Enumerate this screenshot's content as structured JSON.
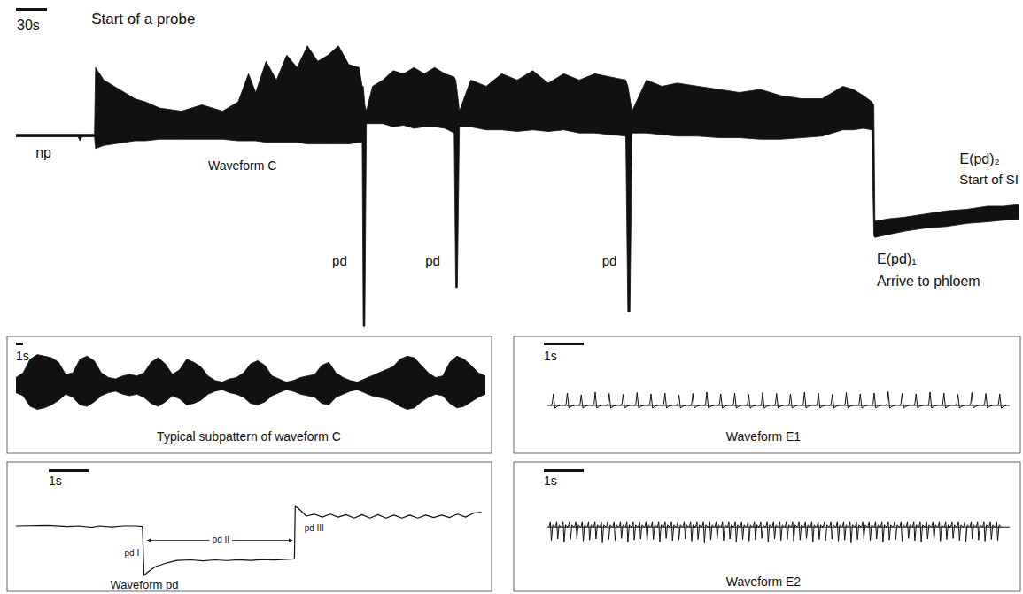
{
  "chart_data": [
    {
      "type": "band",
      "xlim": [
        0,
        970
      ],
      "ylim": [
        0,
        100
      ],
      "tick_labels": false,
      "scale_bar": {
        "value": 30,
        "label": "30s"
      },
      "x": [
        0,
        60,
        62,
        64,
        76,
        77,
        85,
        95,
        105,
        115,
        125,
        139,
        160,
        180,
        200,
        215,
        225,
        232,
        242,
        252,
        262,
        272,
        282,
        292,
        302,
        312,
        322,
        332,
        335,
        336,
        337.5,
        339,
        345,
        355,
        365,
        375,
        385,
        395,
        405,
        415,
        424,
        425.5,
        427,
        429,
        440,
        455,
        470,
        485,
        500,
        515,
        530,
        545,
        560,
        575,
        590,
        592,
        594,
        596,
        610,
        625,
        640,
        660,
        680,
        700,
        720,
        740,
        760,
        780,
        790,
        800,
        810,
        820,
        828,
        830,
        831,
        845,
        860,
        880,
        900,
        920,
        940,
        955,
        970
      ],
      "series": [
        {
          "color": "#111111",
          "values": [
            62.6,
            62.6,
            62.6,
            62.6,
            62.6,
            84,
            80,
            78,
            76,
            74,
            73,
            71,
            70,
            72,
            70,
            73,
            82,
            76,
            86,
            80,
            88,
            84,
            91,
            86,
            88,
            91,
            85,
            84,
            78,
            78,
            72,
            70,
            78,
            80,
            83,
            82,
            84,
            82,
            84,
            82,
            81,
            80,
            76,
            70,
            80,
            78,
            82,
            80,
            83,
            79,
            82,
            80,
            82,
            81,
            80,
            78,
            74,
            70,
            80,
            78,
            79,
            78,
            77,
            76,
            77,
            75,
            74,
            74,
            76,
            78,
            77,
            75,
            73,
            72,
            34.7,
            35.5,
            36,
            37,
            38,
            38.5,
            39.5,
            39.5,
            40
          ],
          "lower": [
            61.8,
            61.8,
            60.5,
            61.8,
            61.8,
            58,
            59,
            59.5,
            60,
            60.5,
            60.5,
            61,
            61,
            61,
            61,
            60.5,
            60.5,
            60.5,
            60,
            60,
            60,
            60,
            59.5,
            59.5,
            59.5,
            59.5,
            59.5,
            60,
            60,
            1.1,
            1.1,
            66,
            66,
            66,
            65,
            65.5,
            64.5,
            65,
            65,
            64.5,
            63,
            13.4,
            13.4,
            65,
            65,
            64,
            64,
            63.5,
            64,
            63.5,
            64,
            63,
            63,
            62.5,
            62,
            5.7,
            5.7,
            63,
            63,
            62.5,
            62,
            62,
            61.5,
            61.5,
            61,
            61,
            61.5,
            62,
            63,
            64,
            64,
            64.5,
            64,
            30,
            29.5,
            30.5,
            31.5,
            32.5,
            33,
            34,
            34.5,
            35,
            35.3
          ]
        }
      ],
      "annotations": [
        {
          "text": "Start of a probe",
          "x": 73,
          "y": 98
        },
        {
          "text": "np",
          "x": 19,
          "y": 55
        },
        {
          "text": "Waveform C",
          "x": 186,
          "y": 51
        },
        {
          "text": "pd",
          "x": 306,
          "y": 20.5
        },
        {
          "text": "pd",
          "x": 396,
          "y": 20.5
        },
        {
          "text": "pd",
          "x": 567,
          "y": 20.5
        },
        {
          "text": "E(pd)₁",
          "x": 833,
          "y": 21
        },
        {
          "text": "Arrive to phloem",
          "x": 833,
          "y": 14
        },
        {
          "text": "E(pd)₂",
          "x": 913,
          "y": 53
        },
        {
          "text": "Start of SI",
          "x": 913,
          "y": 46.6
        }
      ]
    },
    {
      "type": "band",
      "title": "Typical subpattern of waveform C",
      "xlim": [
        0,
        66
      ],
      "ylim": [
        0,
        100
      ],
      "tick_labels": false,
      "scale_bar": {
        "value": 1,
        "label": "1s"
      },
      "x": [
        0,
        1,
        2,
        3,
        4,
        5,
        6,
        7,
        8,
        9,
        10,
        11,
        12,
        13,
        14,
        15,
        16,
        17,
        18,
        19,
        20,
        21,
        22,
        23,
        24,
        25,
        26,
        27,
        28,
        29,
        30,
        31,
        32,
        33,
        34,
        35,
        36,
        37,
        38,
        39,
        40,
        41,
        42,
        43,
        44,
        45,
        46,
        47,
        48,
        49,
        50,
        51,
        52,
        53,
        54,
        55,
        56,
        57,
        58,
        59,
        60,
        61,
        62,
        63,
        64,
        65,
        66
      ],
      "series": [
        {
          "color": "#111111",
          "values": [
            60,
            66,
            84,
            90,
            88,
            86,
            80,
            64,
            66,
            84,
            88,
            82,
            66,
            60,
            58,
            62,
            64,
            62,
            66,
            80,
            86,
            78,
            64,
            70,
            84,
            80,
            74,
            62,
            56,
            54,
            58,
            60,
            66,
            78,
            82,
            76,
            62,
            58,
            54,
            56,
            60,
            62,
            64,
            76,
            80,
            66,
            60,
            56,
            54,
            58,
            62,
            66,
            70,
            74,
            84,
            88,
            86,
            76,
            66,
            60,
            62,
            80,
            88,
            84,
            76,
            66,
            62
          ],
          "lower": [
            40,
            36,
            22,
            18,
            20,
            24,
            30,
            38,
            34,
            24,
            22,
            28,
            36,
            40,
            42,
            38,
            36,
            38,
            34,
            26,
            22,
            28,
            36,
            32,
            24,
            26,
            30,
            38,
            42,
            44,
            40,
            38,
            34,
            26,
            24,
            28,
            36,
            40,
            44,
            42,
            38,
            36,
            34,
            26,
            24,
            34,
            38,
            42,
            44,
            40,
            36,
            34,
            32,
            28,
            22,
            18,
            20,
            28,
            34,
            38,
            36,
            26,
            20,
            22,
            28,
            34,
            38
          ]
        }
      ]
    },
    {
      "type": "spikes",
      "title": "Waveform E1",
      "xlim": [
        0,
        11.6
      ],
      "ylim": [
        0,
        100
      ],
      "tick_labels": false,
      "scale_bar": {
        "value": 1,
        "label": "1s"
      },
      "x": [
        0.15,
        0.5,
        0.85,
        1.2,
        1.55,
        1.9,
        2.25,
        2.6,
        2.95,
        3.3,
        3.65,
        4.0,
        4.35,
        4.7,
        5.05,
        5.4,
        5.75,
        6.1,
        6.45,
        6.8,
        7.15,
        7.5,
        7.85,
        8.2,
        8.55,
        8.9,
        9.25,
        9.6,
        9.95,
        10.3,
        10.65,
        11.0,
        11.35
      ],
      "series": [
        {
          "color": "#111111",
          "baseline": 44,
          "values": [
            70,
            72,
            68,
            74,
            71,
            69,
            73,
            70,
            72,
            68,
            71,
            74,
            70,
            72,
            69,
            73,
            71,
            70,
            74,
            72,
            69,
            73,
            70,
            72,
            75,
            71,
            70,
            74,
            72,
            69,
            73,
            71,
            70
          ]
        }
      ]
    },
    {
      "type": "line",
      "title": "Waveform pd",
      "xlim": [
        0,
        11.8
      ],
      "ylim": [
        0,
        100
      ],
      "tick_labels": false,
      "scale_bar": {
        "value": 1,
        "label": "1s"
      },
      "x": [
        0,
        0.8,
        1.3,
        1.6,
        1.9,
        2.1,
        2.4,
        2.7,
        3.0,
        3.18,
        3.22,
        3.3,
        3.5,
        3.8,
        4.05,
        4.4,
        4.7,
        5.0,
        5.3,
        5.6,
        5.9,
        6.2,
        6.5,
        6.8,
        7.0,
        7.02,
        7.1,
        7.3,
        7.5,
        7.7,
        7.9,
        8.1,
        8.3,
        8.5,
        8.7,
        8.9,
        9.1,
        9.3,
        9.5,
        9.7,
        9.9,
        10.1,
        10.3,
        10.5,
        10.7,
        10.9,
        11.1,
        11.3,
        11.5,
        11.7
      ],
      "series": [
        {
          "color": "#111111",
          "values": [
            60,
            60.5,
            59.5,
            60,
            58.5,
            60,
            59,
            60,
            60,
            59.5,
            9,
            12,
            18,
            22,
            24.5,
            25,
            24,
            25,
            24.3,
            25.2,
            24.5,
            25.4,
            24.8,
            25.6,
            26,
            80,
            78,
            70,
            72,
            69,
            72,
            69,
            71.5,
            68,
            71.5,
            68,
            71.5,
            68,
            71,
            68,
            71,
            68,
            71,
            68.5,
            71,
            68.5,
            72,
            69,
            73,
            74
          ]
        }
      ],
      "annotations": [
        {
          "text": "pd I",
          "x": 3.1,
          "y": 29
        },
        {
          "text": "pd II",
          "x": 5.15,
          "y": 45,
          "x_range": [
            3.3,
            6.95
          ]
        },
        {
          "text": "pd III",
          "x": 7.25,
          "y": 55
        }
      ]
    },
    {
      "type": "spikes",
      "title": "Waveform E2",
      "xlim": [
        0,
        11.6
      ],
      "ylim": [
        0,
        100
      ],
      "tick_labels": false,
      "scale_bar": {
        "value": 1,
        "label": "1s"
      },
      "x": [
        0.1,
        0.26,
        0.42,
        0.58,
        0.74,
        0.9,
        1.06,
        1.22,
        1.38,
        1.54,
        1.7,
        1.86,
        2.02,
        2.18,
        2.34,
        2.5,
        2.66,
        2.82,
        2.98,
        3.14,
        3.3,
        3.46,
        3.62,
        3.78,
        3.94,
        4.1,
        4.26,
        4.42,
        4.58,
        4.74,
        4.9,
        5.06,
        5.22,
        5.38,
        5.54,
        5.7,
        5.86,
        6.02,
        6.18,
        6.34,
        6.5,
        6.66,
        6.82,
        6.98,
        7.14,
        7.3,
        7.46,
        7.62,
        7.78,
        7.94,
        8.1,
        8.26,
        8.42,
        8.58,
        8.74,
        8.9,
        9.06,
        9.22,
        9.38,
        9.54,
        9.7,
        9.86,
        10.02,
        10.18,
        10.34,
        10.5,
        10.66,
        10.82,
        10.98,
        11.14,
        11.3
      ],
      "series": [
        {
          "color": "#111111",
          "baseline": 58,
          "values": [
            32,
            35,
            30,
            34,
            36,
            31,
            33,
            35,
            29,
            34,
            32,
            36,
            30,
            33,
            35,
            31,
            34,
            30,
            36,
            32,
            33,
            35,
            31,
            34,
            29,
            33,
            36,
            32,
            35,
            30,
            34,
            31,
            33,
            36,
            30,
            35,
            32,
            34,
            31,
            33,
            36,
            30,
            34,
            32,
            35,
            31,
            33,
            29,
            34,
            36,
            32,
            35,
            30,
            33,
            34,
            31,
            36,
            32,
            30,
            35,
            33,
            31,
            34,
            36,
            32,
            30,
            35,
            33,
            31,
            34,
            32
          ]
        }
      ]
    }
  ]
}
